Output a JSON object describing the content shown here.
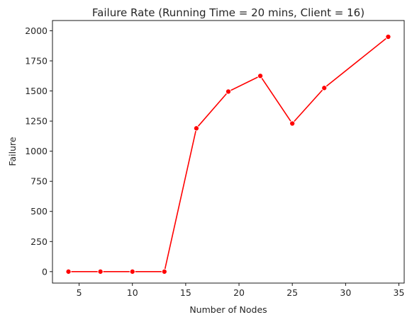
{
  "chart_data": {
    "type": "line",
    "title": "Failure Rate (Running Time = 20 mins, Client = 16)",
    "xlabel": "Number of Nodes",
    "ylabel": "Failure",
    "xlim": [
      2.5,
      35.5
    ],
    "ylim": [
      -95,
      2085
    ],
    "xticks": [
      5,
      10,
      15,
      20,
      25,
      30,
      35
    ],
    "yticks": [
      0,
      250,
      500,
      750,
      1000,
      1250,
      1500,
      1750,
      2000
    ],
    "grid": false,
    "legend": "none",
    "series": [
      {
        "color": "#ff0000",
        "marker": "circle",
        "x": [
          4,
          7,
          10,
          13,
          16,
          19,
          22,
          25,
          28,
          34
        ],
        "y": [
          0,
          0,
          0,
          0,
          1190,
          1495,
          1625,
          1230,
          1525,
          1950
        ]
      }
    ]
  }
}
